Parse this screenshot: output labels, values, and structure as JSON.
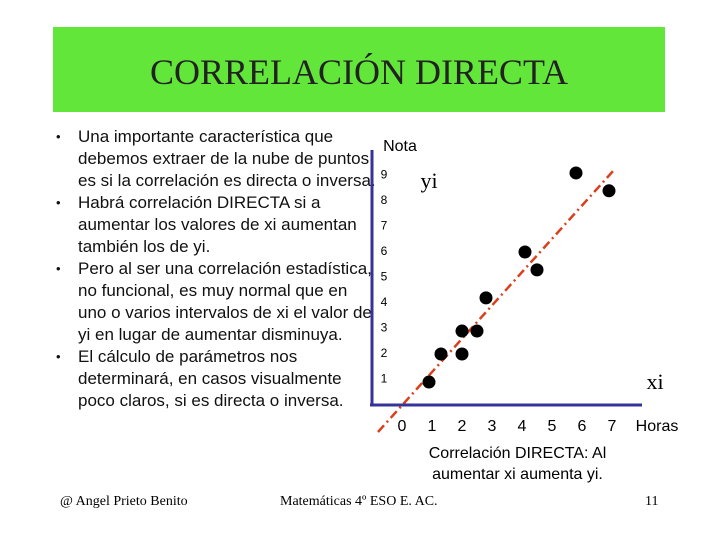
{
  "slide": {
    "title": "CORRELACIÓN DIRECTA",
    "bullets": [
      "Una importante característica que debemos extraer de la nube de puntos es si la correlación es directa o inversa.",
      "Habrá correlación DIRECTA si a aumentar los valores de xi aumentan también los de yi.",
      "Pero al ser una correlación estadística, no funcional, es muy normal que en uno o varios intervalos de xi el valor de yi en lugar de aumentar disminuya.",
      "El cálculo de parámetros nos determinará, en casos visualmente poco claros, si es directa o inversa."
    ],
    "footer": {
      "author": "@ Angel Prieto Benito",
      "course": "Matemáticas 4º ESO E. AC.",
      "page": "11"
    }
  },
  "chart_data": {
    "type": "scatter",
    "y_label": "Nota",
    "x_label": "Horas",
    "y_var": "yi",
    "x_var": "xi",
    "annotation": "Correlación DIRECTA: Al aumentar xi aumenta yi.",
    "x": [
      0.9,
      1.3,
      2.0,
      2.0,
      2.5,
      2.8,
      4.1,
      4.5,
      5.8,
      6.9
    ],
    "values": [
      0.9,
      2.0,
      2.0,
      2.9,
      2.9,
      4.2,
      6.0,
      5.3,
      9.1,
      8.4
    ],
    "color": "#000000",
    "xlim": [
      -1,
      8
    ],
    "ylim": [
      0,
      10
    ],
    "xticks": [
      0,
      1,
      2,
      3,
      4,
      5,
      6,
      7
    ],
    "yticks": [
      1,
      2,
      3,
      4,
      5,
      6,
      7,
      8,
      9
    ]
  }
}
